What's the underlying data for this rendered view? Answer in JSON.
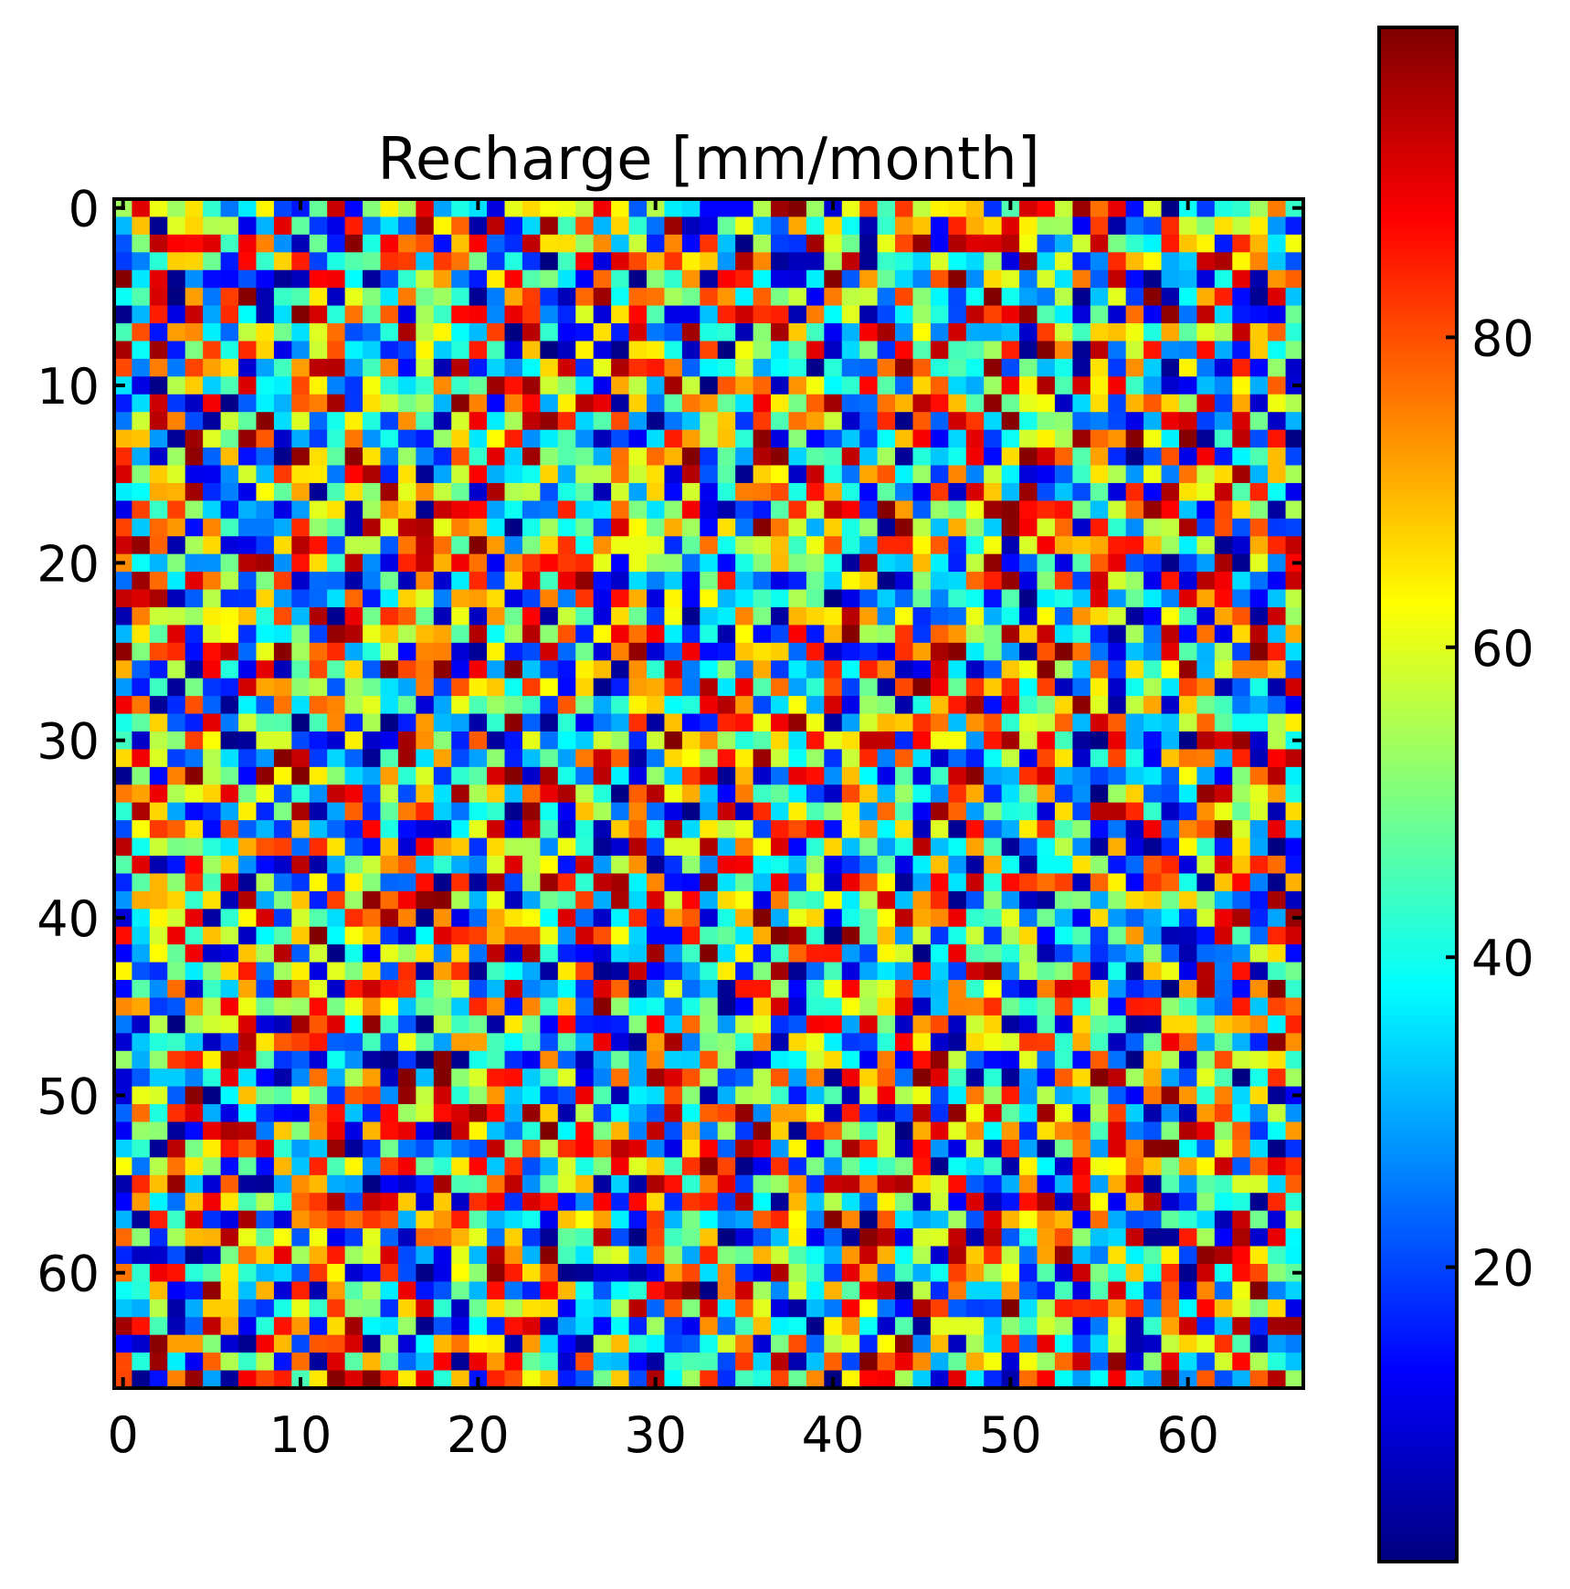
{
  "chart_data": {
    "type": "heatmap",
    "title": "Recharge [mm/month]",
    "grid": false,
    "grid_shape": {
      "rows": 67,
      "cols": 67
    },
    "x_ticks": [
      0,
      10,
      20,
      30,
      40,
      50,
      60
    ],
    "y_ticks": [
      0,
      10,
      20,
      30,
      40,
      50,
      60
    ],
    "x_range": [
      -0.5,
      66.5
    ],
    "y_range": [
      -0.5,
      66.5
    ],
    "y_axis_inverted": true,
    "colormap": "jet",
    "colorbar": {
      "placement": "right",
      "range": [
        1,
        100
      ],
      "ticks": [
        20,
        40,
        60,
        80
      ]
    },
    "value_range": [
      1,
      100
    ],
    "values_note": "spatially uncorrelated random field spanning the full colour range"
  },
  "colors": {
    "frame": "#000000",
    "jet_stops": [
      "#00007f",
      "#0000ff",
      "#007fff",
      "#00ffff",
      "#7fff7f",
      "#ffff00",
      "#ff7f00",
      "#ff0000",
      "#7f0000"
    ]
  }
}
